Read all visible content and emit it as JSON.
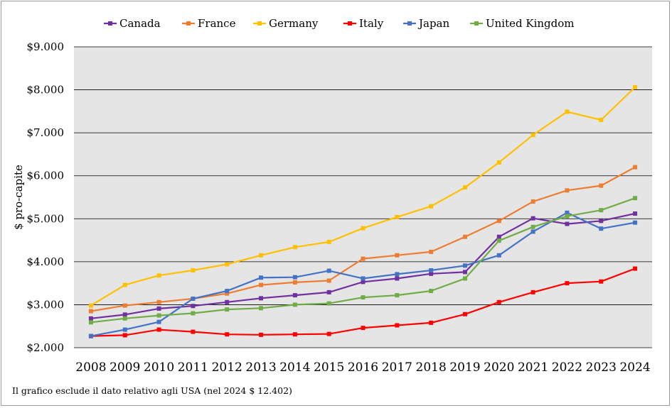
{
  "chart_data": {
    "type": "line",
    "title": "",
    "xlabel": "",
    "ylabel": "$ pro-capite",
    "x": [
      "2008",
      "2009",
      "2010",
      "2011",
      "2012",
      "2013",
      "2014",
      "2015",
      "2016",
      "2017",
      "2018",
      "2019",
      "2020",
      "2021",
      "2022",
      "2023",
      "2024"
    ],
    "ylim": [
      2000,
      9000
    ],
    "yticks": [
      2000,
      3000,
      4000,
      5000,
      6000,
      7000,
      8000,
      9000
    ],
    "ytick_labels": [
      "$2.000",
      "$3.000",
      "$4.000",
      "$5.000",
      "$6.000",
      "$7.000",
      "$8.000",
      "$9.000"
    ],
    "grid": "horizontal",
    "legend_position": "top",
    "series": [
      {
        "name": "Canada",
        "color": "#7030a0",
        "values": [
          2680,
          2770,
          2910,
          2970,
          3060,
          3150,
          3220,
          3290,
          3530,
          3610,
          3720,
          3760,
          4580,
          5010,
          4880,
          4950,
          5120
        ]
      },
      {
        "name": "France",
        "color": "#ed7d31",
        "values": [
          2850,
          2980,
          3060,
          3140,
          3260,
          3460,
          3520,
          3560,
          4070,
          4150,
          4230,
          4580,
          4950,
          5400,
          5660,
          5770,
          6200
        ]
      },
      {
        "name": "Germany",
        "color": "#ffc000",
        "values": [
          2980,
          3460,
          3680,
          3800,
          3940,
          4150,
          4340,
          4460,
          4780,
          5040,
          5290,
          5730,
          6310,
          6950,
          7490,
          7300,
          8060
        ]
      },
      {
        "name": "Italy",
        "color": "#ff0000",
        "values": [
          2270,
          2290,
          2420,
          2370,
          2310,
          2300,
          2310,
          2320,
          2460,
          2520,
          2580,
          2780,
          3060,
          3290,
          3500,
          3540,
          3840
        ]
      },
      {
        "name": "Japan",
        "color": "#4472c4",
        "values": [
          2270,
          2420,
          2600,
          3140,
          3320,
          3630,
          3640,
          3790,
          3610,
          3710,
          3800,
          3910,
          4150,
          4700,
          5140,
          4770,
          4910
        ]
      },
      {
        "name": "United Kingdom",
        "color": "#70ad47",
        "values": [
          2590,
          2680,
          2750,
          2800,
          2890,
          2920,
          3000,
          3030,
          3170,
          3220,
          3320,
          3610,
          4490,
          4810,
          5060,
          5200,
          5480
        ]
      }
    ]
  },
  "footnote": "Il grafico esclude il dato relativo agli USA (nel 2024 $ 12.402)"
}
